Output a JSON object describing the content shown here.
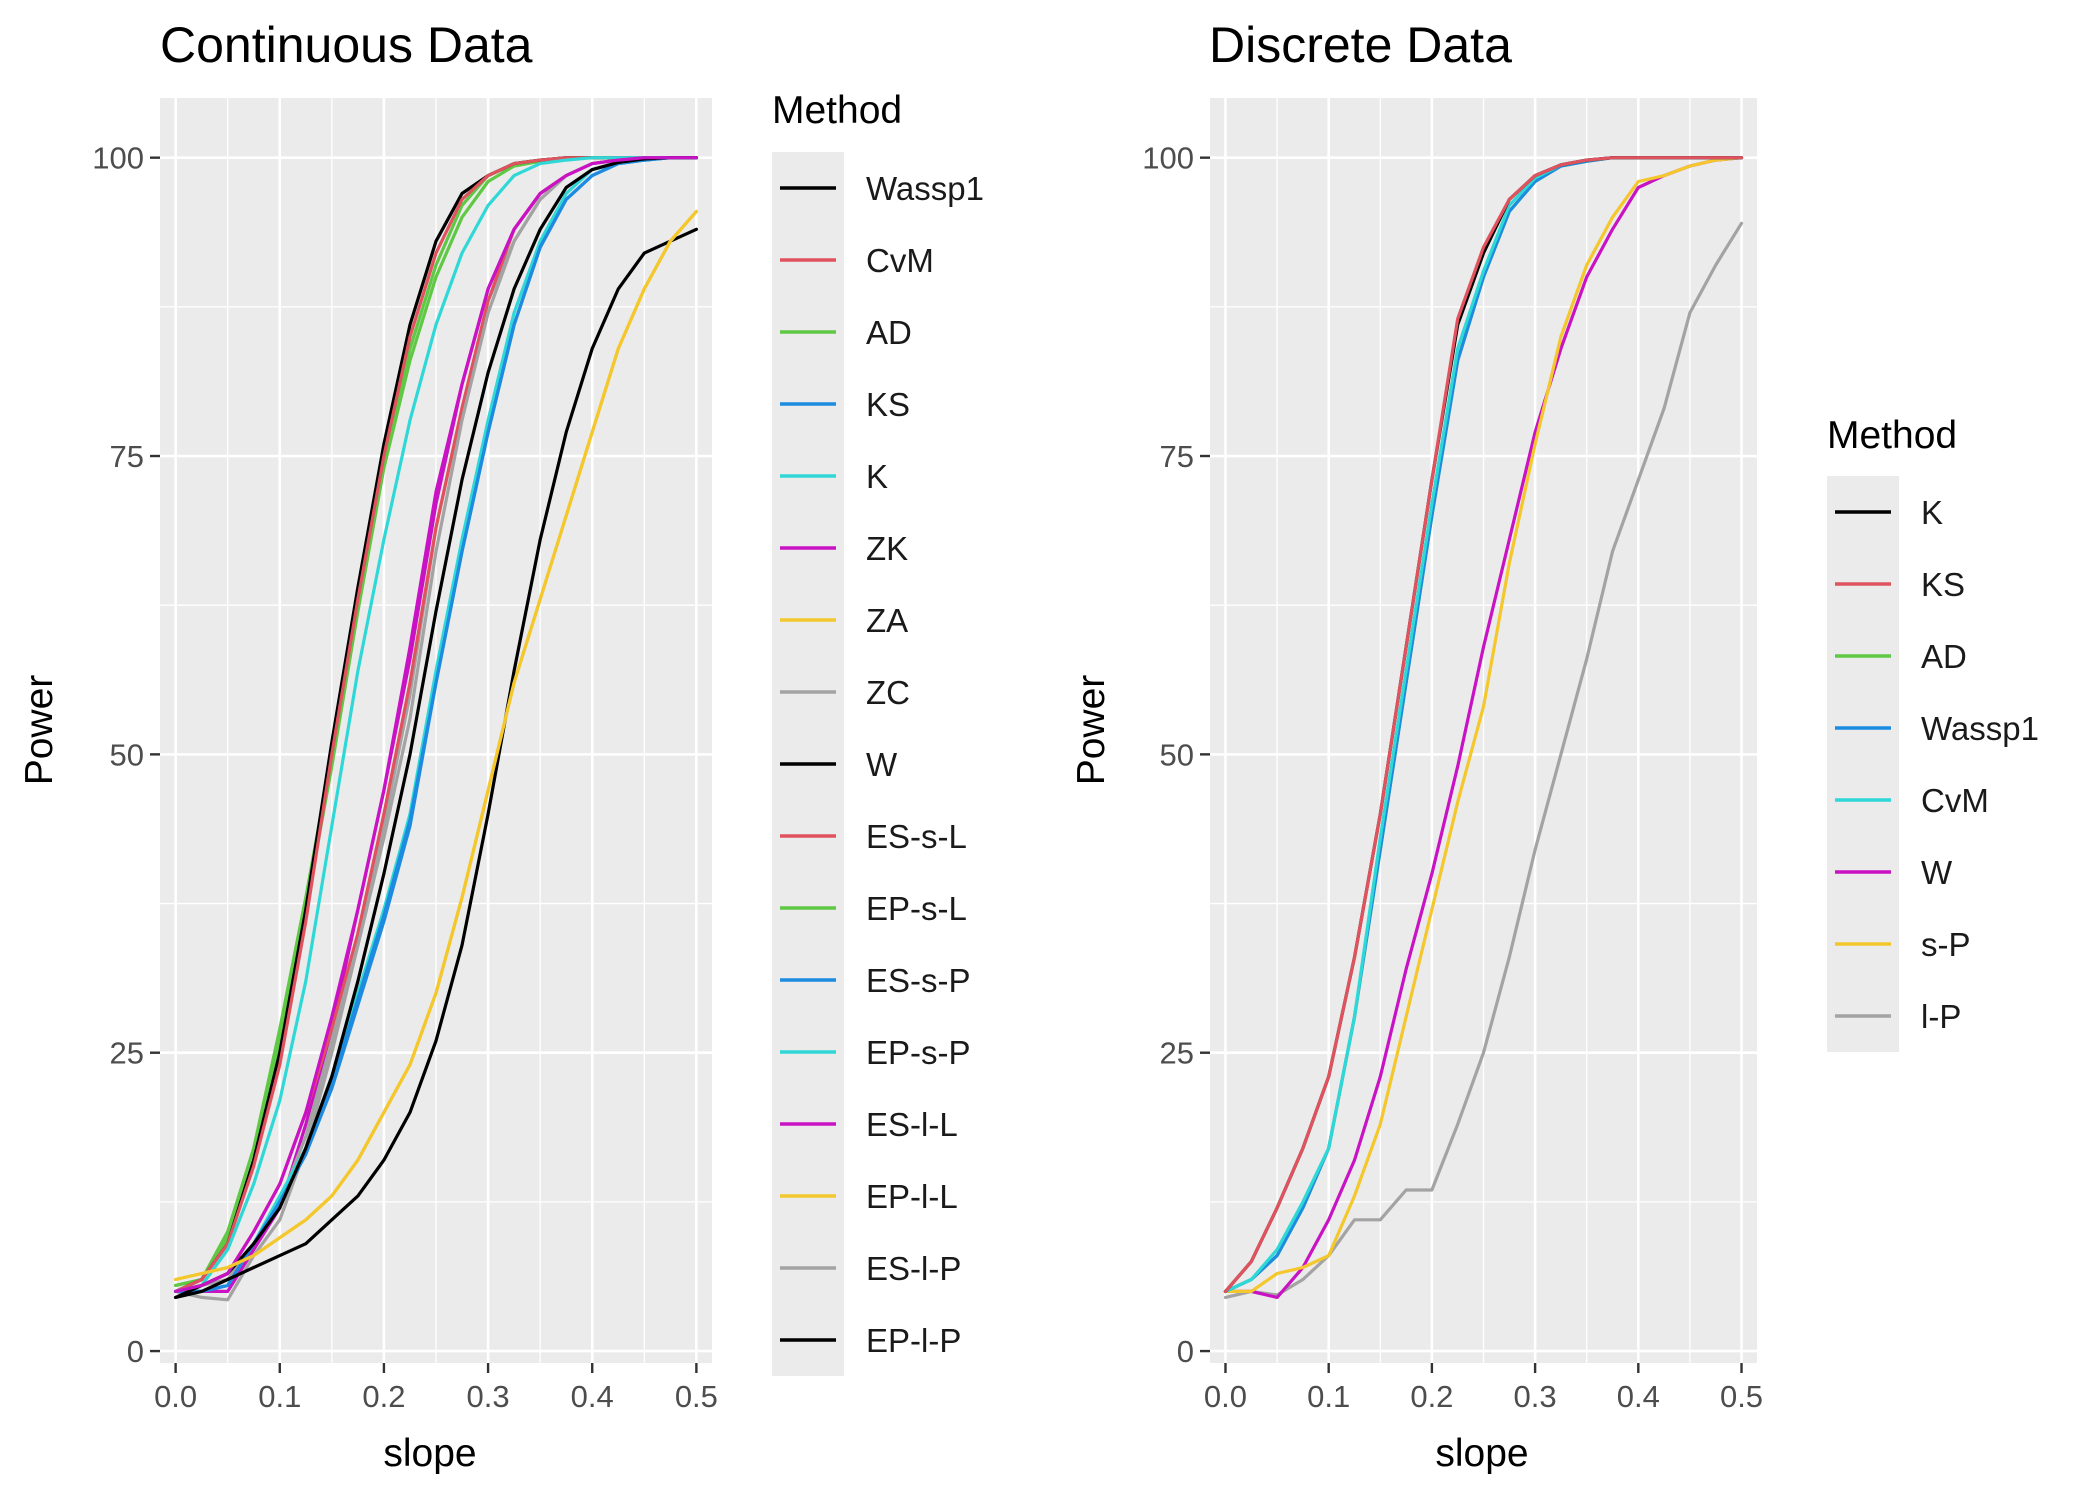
{
  "colors": {
    "panel_background": "#ebebeb",
    "grid": "#ffffff",
    "black": "#000000",
    "red": "#e0535e",
    "green": "#5fc844",
    "blue": "#1d8be0",
    "cyan": "#2fd8d6",
    "magenta": "#c912c3",
    "yellow": "#f4c72d",
    "gray": "#a3a3a3"
  },
  "chart_data": [
    {
      "type": "line",
      "title": "Continuous Data",
      "xlabel": "slope",
      "ylabel": "Power",
      "xlim": [
        -0.015,
        0.515
      ],
      "ylim": [
        -1,
        105
      ],
      "x_ticks": [
        "0.0",
        "0.1",
        "0.2",
        "0.3",
        "0.4",
        "0.5"
      ],
      "x_tick_values": [
        0.0,
        0.1,
        0.2,
        0.3,
        0.4,
        0.5
      ],
      "y_ticks": [
        "0",
        "25",
        "50",
        "75",
        "100"
      ],
      "y_tick_values": [
        0,
        25,
        50,
        75,
        100
      ],
      "grid": true,
      "legend": {
        "title": "Method",
        "position": "right",
        "entries": [
          {
            "name": "Wassp1",
            "color": "#000000"
          },
          {
            "name": "CvM",
            "color": "#e0535e"
          },
          {
            "name": "AD",
            "color": "#5fc844"
          },
          {
            "name": "KS",
            "color": "#1d8be0"
          },
          {
            "name": "K",
            "color": "#2fd8d6"
          },
          {
            "name": "ZK",
            "color": "#c912c3"
          },
          {
            "name": "ZA",
            "color": "#f4c72d"
          },
          {
            "name": "ZC",
            "color": "#a3a3a3"
          },
          {
            "name": "W",
            "color": "#000000"
          },
          {
            "name": "ES-s-L",
            "color": "#e0535e"
          },
          {
            "name": "EP-s-L",
            "color": "#5fc844"
          },
          {
            "name": "ES-s-P",
            "color": "#1d8be0"
          },
          {
            "name": "EP-s-P",
            "color": "#2fd8d6"
          },
          {
            "name": "ES-l-L",
            "color": "#c912c3"
          },
          {
            "name": "EP-l-L",
            "color": "#f4c72d"
          },
          {
            "name": "ES-l-P",
            "color": "#a3a3a3"
          },
          {
            "name": "EP-l-P",
            "color": "#000000"
          }
        ]
      },
      "x": [
        0.0,
        0.025,
        0.05,
        0.075,
        0.1,
        0.125,
        0.15,
        0.175,
        0.2,
        0.225,
        0.25,
        0.275,
        0.3,
        0.325,
        0.35,
        0.375,
        0.4,
        0.425,
        0.45,
        0.475,
        0.5
      ],
      "series": [
        {
          "name": "ES-l-L",
          "color": "#c912c3",
          "values": [
            5,
            5,
            5,
            8.5,
            12,
            19,
            27,
            37,
            47,
            59,
            72,
            81,
            89,
            94,
            97,
            98.5,
            99.5,
            99.8,
            100,
            100,
            100
          ]
        },
        {
          "name": "ES-l-P",
          "color": "#a3a3a3",
          "values": [
            5,
            4.5,
            4.3,
            8,
            11,
            17,
            25,
            34,
            44,
            55,
            69,
            79,
            88,
            93,
            96.5,
            98.5,
            99.5,
            99.8,
            100,
            100,
            100
          ]
        },
        {
          "name": "CvM",
          "color": "#e0535e",
          "values": [
            5,
            5.5,
            6.5,
            10,
            14,
            20,
            27,
            35,
            45,
            56,
            69,
            79,
            88,
            94,
            97,
            98.5,
            99.5,
            99.8,
            100,
            100,
            100
          ]
        },
        {
          "name": "ZC",
          "color": "#a3a3a3",
          "values": [
            5,
            5.5,
            6,
            9,
            12.5,
            18,
            26,
            34,
            43,
            53,
            67,
            78,
            87,
            93,
            96.5,
            98.5,
            99.5,
            99.8,
            100,
            100,
            100
          ]
        },
        {
          "name": "AD",
          "color": "#5fc844",
          "values": [
            5.5,
            6,
            10,
            17,
            27,
            38,
            50,
            63,
            75,
            84,
            91,
            96,
            98.5,
            99.5,
            99.8,
            100,
            100,
            100,
            100,
            100,
            100
          ]
        },
        {
          "name": "EP-s-L",
          "color": "#5fc844",
          "values": [
            5.5,
            6,
            9.5,
            16,
            26,
            37,
            49,
            62,
            74,
            83,
            90,
            95,
            98,
            99.3,
            99.7,
            100,
            100,
            100,
            100,
            100,
            100
          ]
        },
        {
          "name": "Wassp1",
          "color": "#000000",
          "values": [
            5,
            6,
            9,
            16,
            25,
            37,
            51,
            64,
            76,
            86,
            93,
            97,
            98.5,
            99.5,
            99.8,
            100,
            100,
            100,
            100,
            100,
            100
          ]
        },
        {
          "name": "ES-s-L",
          "color": "#e0535e",
          "values": [
            5,
            6,
            9,
            15.5,
            24,
            36,
            50,
            63,
            75,
            85,
            92,
            96.5,
            98.5,
            99.5,
            99.8,
            100,
            100,
            100,
            100,
            100,
            100
          ]
        },
        {
          "name": "K",
          "color": "#2fd8d6",
          "values": [
            5,
            5.5,
            8.5,
            14,
            21,
            31,
            44,
            57,
            68,
            78,
            86,
            92,
            96,
            98.5,
            99.5,
            99.8,
            100,
            100,
            100,
            100,
            100
          ]
        },
        {
          "name": "EP-s-P",
          "color": "#2fd8d6",
          "values": [
            5,
            5,
            5.5,
            9,
            13,
            17,
            23,
            30,
            37,
            45,
            57,
            68,
            78,
            87,
            93,
            97,
            99,
            99.5,
            99.8,
            100,
            100
          ]
        },
        {
          "name": "KS",
          "color": "#1d8be0",
          "values": [
            5,
            5,
            5.5,
            9,
            12.5,
            16.5,
            22,
            29,
            36,
            44,
            56,
            67,
            77,
            86,
            92.5,
            96.5,
            98.5,
            99.5,
            99.8,
            100,
            100
          ]
        },
        {
          "name": "ES-s-P",
          "color": "#1d8be0",
          "values": [
            5,
            5,
            5.5,
            9,
            12.5,
            16.5,
            22.5,
            29.5,
            36.5,
            44.5,
            56,
            67,
            77,
            86,
            92.5,
            96.5,
            98.5,
            99.5,
            99.8,
            100,
            100
          ]
        },
        {
          "name": "W",
          "color": "#000000",
          "values": [
            4.5,
            5.5,
            6.5,
            9,
            12,
            17,
            23,
            31,
            40,
            50,
            62,
            73,
            82,
            89,
            94,
            97.5,
            99,
            99.6,
            99.9,
            100,
            100
          ]
        },
        {
          "name": "ZK",
          "color": "#c912c3",
          "values": [
            5,
            5.5,
            6.5,
            10,
            14,
            20,
            28,
            37,
            47,
            58,
            71,
            81,
            89,
            94,
            97,
            98.5,
            99.5,
            99.8,
            100,
            100,
            100
          ]
        },
        {
          "name": "EP-l-P",
          "color": "#000000",
          "values": [
            4.5,
            5,
            6,
            7,
            8,
            9,
            11,
            13,
            16,
            20,
            26,
            34,
            45,
            57,
            68,
            77,
            84,
            89,
            92,
            93,
            94
          ]
        },
        {
          "name": "EP-l-L",
          "color": "#f4c72d",
          "values": [
            6,
            6.5,
            7,
            8,
            9.5,
            11,
            13,
            16,
            20,
            24,
            30,
            38,
            47,
            56,
            63,
            70,
            77,
            84,
            89,
            93,
            95.5
          ]
        },
        {
          "name": "ZA",
          "color": "#f4c72d",
          "values": [
            6,
            6.5,
            7,
            8,
            9.5,
            11,
            13,
            16,
            20,
            24,
            30,
            38,
            47,
            56,
            63,
            70,
            77,
            84,
            89,
            93,
            95.5
          ]
        }
      ]
    },
    {
      "type": "line",
      "title": "Discrete Data",
      "xlabel": "slope",
      "ylabel": "Power",
      "xlim": [
        -0.015,
        0.515
      ],
      "ylim": [
        -1,
        105
      ],
      "x_ticks": [
        "0.0",
        "0.1",
        "0.2",
        "0.3",
        "0.4",
        "0.5"
      ],
      "x_tick_values": [
        0.0,
        0.1,
        0.2,
        0.3,
        0.4,
        0.5
      ],
      "y_ticks": [
        "0",
        "25",
        "50",
        "75",
        "100"
      ],
      "y_tick_values": [
        0,
        25,
        50,
        75,
        100
      ],
      "grid": true,
      "legend": {
        "title": "Method",
        "position": "right",
        "entries": [
          {
            "name": "K",
            "color": "#000000"
          },
          {
            "name": "KS",
            "color": "#e0535e"
          },
          {
            "name": "AD",
            "color": "#5fc844"
          },
          {
            "name": "Wassp1",
            "color": "#1d8be0"
          },
          {
            "name": "CvM",
            "color": "#2fd8d6"
          },
          {
            "name": "W",
            "color": "#c912c3"
          },
          {
            "name": "s-P",
            "color": "#f4c72d"
          },
          {
            "name": "l-P",
            "color": "#a3a3a3"
          }
        ]
      },
      "x": [
        0.0,
        0.025,
        0.05,
        0.075,
        0.1,
        0.125,
        0.15,
        0.175,
        0.2,
        0.225,
        0.25,
        0.275,
        0.3,
        0.325,
        0.35,
        0.375,
        0.4,
        0.425,
        0.45,
        0.475,
        0.5
      ],
      "series": [
        {
          "name": "l-P",
          "color": "#a3a3a3",
          "values": [
            4.5,
            5,
            4.7,
            6,
            8,
            11,
            11,
            13.5,
            13.5,
            19,
            25,
            33,
            42,
            50,
            58,
            67,
            73,
            79,
            87,
            91,
            94.5
          ]
        },
        {
          "name": "W",
          "color": "#c912c3",
          "values": [
            5,
            5,
            4.5,
            7,
            11,
            16,
            23,
            32,
            40,
            49,
            59,
            68,
            77,
            84,
            90,
            94,
            97.5,
            98.5,
            99.3,
            99.8,
            100
          ]
        },
        {
          "name": "s-P",
          "color": "#f4c72d",
          "values": [
            5,
            5,
            6.5,
            7,
            8,
            13,
            19,
            28,
            37,
            46,
            54,
            66,
            76,
            85,
            91,
            95,
            98,
            98.5,
            99.3,
            99.8,
            100
          ]
        },
        {
          "name": "AD",
          "color": "#5fc844",
          "values": [
            5,
            6,
            8,
            12,
            17,
            28,
            42,
            56,
            70,
            83,
            90,
            95.5,
            98,
            99.3,
            99.7,
            100,
            100,
            100,
            100,
            100,
            100
          ]
        },
        {
          "name": "Wassp1",
          "color": "#1d8be0",
          "values": [
            5,
            6,
            8,
            12,
            17,
            28,
            42,
            56,
            70,
            83,
            90,
            95.5,
            98,
            99.3,
            99.7,
            100,
            100,
            100,
            100,
            100,
            100
          ]
        },
        {
          "name": "CvM",
          "color": "#2fd8d6",
          "values": [
            5,
            6,
            8.5,
            12.5,
            17,
            28,
            43,
            57,
            71,
            84,
            90.5,
            96,
            98.3,
            99.4,
            99.8,
            100,
            100,
            100,
            100,
            100,
            100
          ]
        },
        {
          "name": "K",
          "color": "#000000",
          "values": [
            5,
            7.5,
            12,
            17,
            23,
            33,
            45,
            59,
            73,
            86,
            92,
            96.5,
            98.5,
            99.4,
            99.8,
            100,
            100,
            100,
            100,
            100,
            100
          ]
        },
        {
          "name": "KS",
          "color": "#e0535e",
          "values": [
            5,
            7.5,
            12,
            17,
            23,
            33,
            45,
            59,
            73,
            86.5,
            92.5,
            96.5,
            98.5,
            99.4,
            99.8,
            100,
            100,
            100,
            100,
            100,
            100
          ]
        }
      ]
    }
  ]
}
